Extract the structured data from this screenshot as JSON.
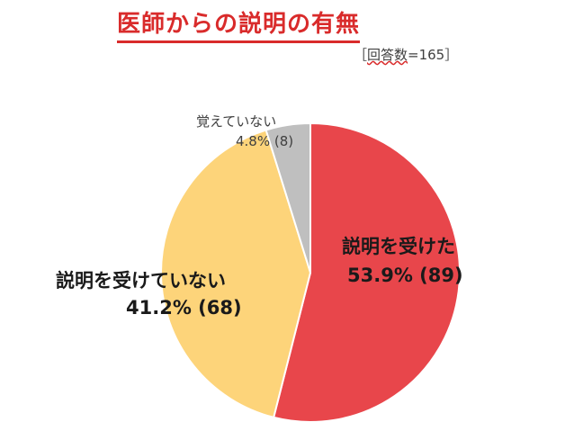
{
  "chart_data": {
    "type": "pie",
    "title": "医師からの説明の有無",
    "subtitle": "［回答数=165］",
    "sample_label_prefix": "［",
    "sample_label_underlined": "回答数",
    "sample_label_suffix": "=165］",
    "slices": [
      {
        "name": "説明を受けた",
        "percent": 53.9,
        "count": 89,
        "percent_label": "53.9% (89)",
        "color": "#e8464b"
      },
      {
        "name": "説明を受けていない",
        "percent": 41.2,
        "count": 68,
        "percent_label": "41.2% (68)",
        "color": "#fdd47a"
      },
      {
        "name": "覚えていない",
        "percent": 4.8,
        "count": 8,
        "percent_label": "4.8% (8)",
        "color": "#bfbfbf"
      }
    ],
    "start_angle_deg": 0,
    "direction": "clockwise",
    "slice_border_color": "#ffffff"
  }
}
